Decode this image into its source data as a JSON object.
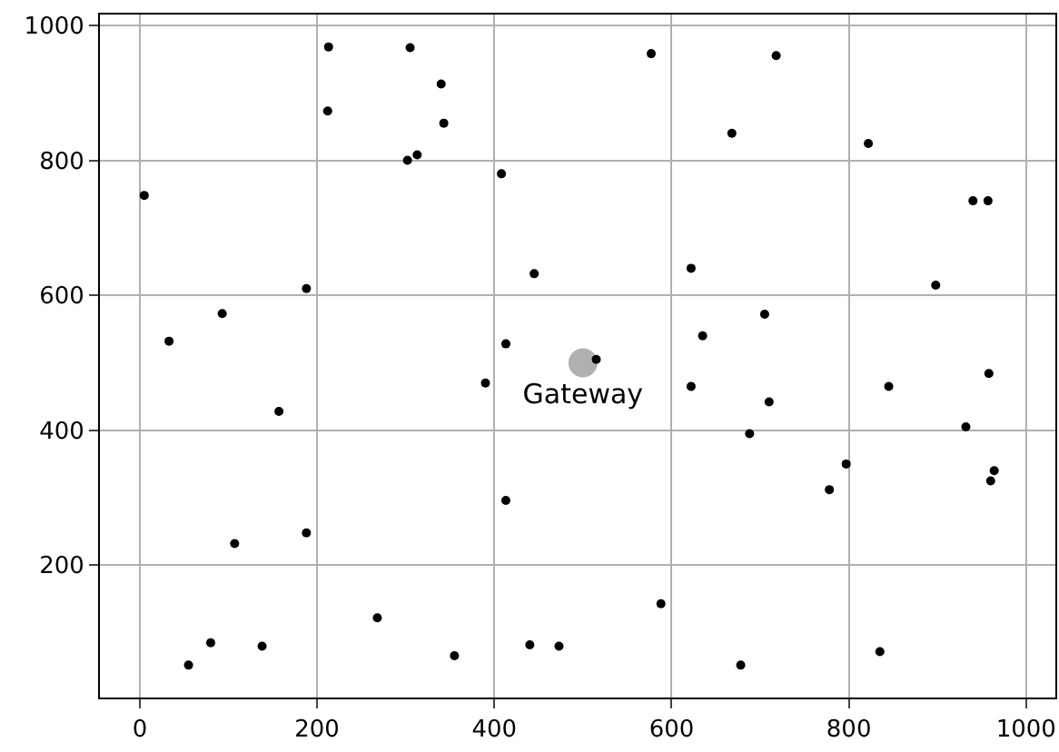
{
  "chart_data": {
    "type": "scatter",
    "xlim": [
      -45,
      1033
    ],
    "ylim": [
      4,
      1016
    ],
    "xticks": [
      0,
      200,
      400,
      600,
      800,
      1000
    ],
    "yticks": [
      200,
      400,
      600,
      800,
      1000
    ],
    "grid": true,
    "legend": false,
    "marker": "circle",
    "series": [
      {
        "color": "#000000",
        "x": [
          5,
          33,
          93,
          157,
          188,
          213,
          212,
          305,
          340,
          343,
          302,
          313,
          408,
          413,
          445,
          390,
          413,
          515,
          577,
          718,
          668,
          822,
          940,
          957,
          898,
          622,
          635,
          622,
          705,
          710,
          688,
          845,
          958,
          932,
          797,
          778,
          960,
          964,
          107,
          188,
          55,
          80,
          138,
          268,
          355,
          440,
          473,
          588,
          678,
          835
        ],
        "values": [
          748,
          532,
          573,
          428,
          610,
          968,
          873,
          967,
          913,
          855,
          800,
          808,
          780,
          528,
          632,
          470,
          296,
          505,
          958,
          955,
          840,
          825,
          740,
          740,
          615,
          640,
          540,
          465,
          572,
          442,
          395,
          465,
          484,
          405,
          350,
          312,
          325,
          340,
          232,
          248,
          52,
          85,
          80,
          122,
          66,
          82,
          80,
          143,
          52,
          72
        ]
      },
      {
        "name": "Gateway",
        "color": "#b0b0b0",
        "x": [
          500
        ],
        "values": [
          500
        ]
      }
    ]
  }
}
